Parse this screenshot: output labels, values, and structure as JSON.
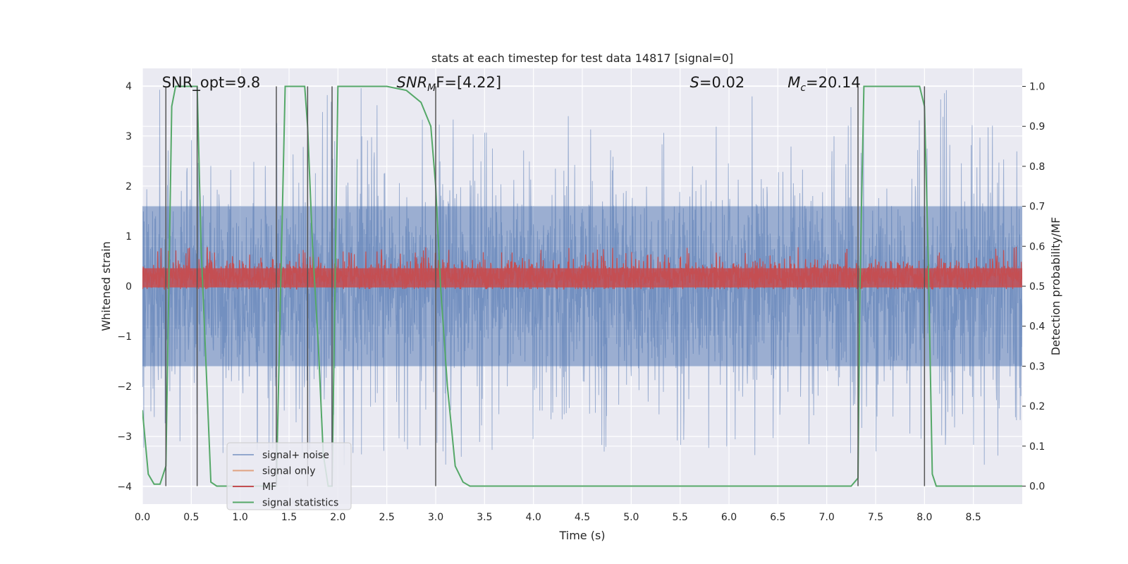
{
  "chart_data": {
    "type": "line",
    "title": "stats at each timestep for test data 14817 [signal=0]",
    "xlabel": "Time (s)",
    "ylabel_left": "Whitened strain",
    "ylabel_right": "Detection probability/MF",
    "xlim": [
      0,
      9.0
    ],
    "ylim_left": [
      -4.35,
      4.35
    ],
    "ylim_right": [
      -0.045,
      1.045
    ],
    "grid": true,
    "xticks": [
      "0.0",
      "0.5",
      "1.0",
      "1.5",
      "2.0",
      "2.5",
      "3.0",
      "3.5",
      "4.0",
      "4.5",
      "5.0",
      "5.5",
      "6.0",
      "6.5",
      "7.0",
      "7.5",
      "8.0",
      "8.5"
    ],
    "yticks_left": [
      "4",
      "3",
      "2",
      "1",
      "0",
      "−1",
      "−2",
      "−3",
      "−4"
    ],
    "yticks_right": [
      "1.0",
      "0.9",
      "0.8",
      "0.7",
      "0.6",
      "0.5",
      "0.4",
      "0.3",
      "0.2",
      "0.1",
      "0.0"
    ],
    "annotations": [
      {
        "text": "SNR_opt=9.8",
        "x": 0.2
      },
      {
        "text": "SNR",
        "sub": "M",
        "suffix": "F=[4.22]",
        "x": 2.6
      },
      {
        "text": "S",
        "suffix": "=0.02",
        "x": 5.6
      },
      {
        "text": "M",
        "sub": "c",
        "suffix": "=20.14",
        "x": 6.6
      }
    ],
    "vertical_lines": [
      0.24,
      0.56,
      1.37,
      1.69,
      1.94,
      3.0,
      7.32,
      8.0
    ],
    "series": [
      {
        "name": "signal+ noise",
        "color": "#4c72b0",
        "axis": "left",
        "style": "noise",
        "band": [
          -1.6,
          1.6
        ],
        "peak_max": 4.0,
        "peak_min": -3.6
      },
      {
        "name": "signal only",
        "color": "#dd8452",
        "axis": "left",
        "constant": 0.0
      },
      {
        "name": "MF",
        "color": "#c44e52",
        "axis": "right",
        "style": "noise",
        "band": [
          0.495,
          0.56
        ],
        "peak_max": 0.6
      },
      {
        "name": "signal statistics",
        "color": "#55a868",
        "axis": "right",
        "x": [
          0.0,
          0.06,
          0.12,
          0.18,
          0.24,
          0.3,
          0.34,
          0.4,
          0.5,
          0.56,
          0.6,
          0.66,
          0.7,
          0.76,
          0.85,
          1.0,
          1.2,
          1.3,
          1.37,
          1.41,
          1.46,
          1.5,
          1.6,
          1.66,
          1.69,
          1.74,
          1.8,
          1.85,
          1.9,
          1.94,
          1.97,
          2.0,
          2.1,
          2.5,
          2.7,
          2.85,
          2.95,
          3.0,
          3.05,
          3.12,
          3.2,
          3.28,
          3.35,
          3.5,
          4.0,
          4.5,
          5.0,
          5.5,
          6.0,
          6.5,
          7.0,
          7.25,
          7.32,
          7.34,
          7.38,
          7.45,
          7.6,
          7.95,
          8.0,
          8.04,
          8.08,
          8.12,
          8.2,
          8.5,
          9.0
        ],
        "y": [
          0.19,
          0.03,
          0.005,
          0.005,
          0.05,
          0.95,
          1.0,
          1.0,
          1.0,
          1.0,
          0.6,
          0.25,
          0.01,
          0.0,
          0.0,
          0.0,
          0.0,
          0.0,
          0.0,
          0.45,
          1.0,
          1.0,
          1.0,
          1.0,
          0.9,
          0.6,
          0.35,
          0.08,
          0.0,
          0.0,
          0.5,
          1.0,
          1.0,
          1.0,
          0.99,
          0.96,
          0.9,
          0.75,
          0.5,
          0.25,
          0.05,
          0.01,
          0.0,
          0.0,
          0.0,
          0.0,
          0.0,
          0.0,
          0.0,
          0.0,
          0.0,
          0.0,
          0.02,
          0.5,
          1.0,
          1.0,
          1.0,
          1.0,
          0.95,
          0.55,
          0.03,
          0.0,
          0.0,
          0.0,
          0.0
        ]
      }
    ],
    "legend_position": "lower-left"
  }
}
